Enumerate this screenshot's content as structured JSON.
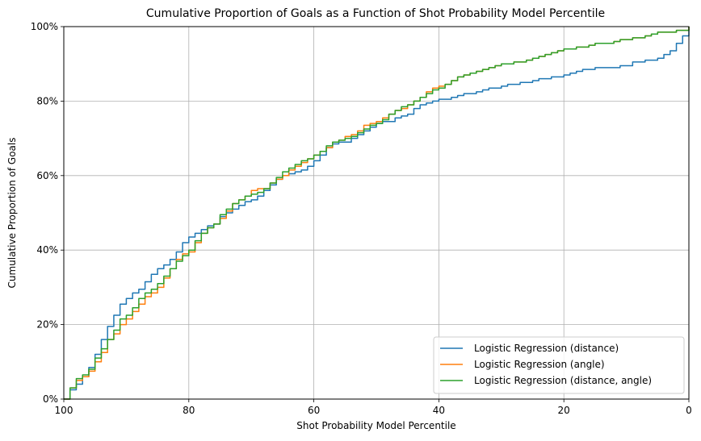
{
  "chart_data": {
    "type": "line",
    "title": "Cumulative Proportion of Goals as a Function of Shot Probability Model Percentile",
    "xlabel": "Shot Probability Model Percentile",
    "ylabel": "Cumulative Proportion of Goals",
    "xlim": [
      100,
      0
    ],
    "ylim": [
      0,
      1
    ],
    "x_reversed": true,
    "grid": true,
    "legend_position": "lower-right",
    "x_ticks": [
      100,
      80,
      60,
      40,
      20,
      0
    ],
    "x_tick_labels": [
      "100",
      "80",
      "60",
      "40",
      "20",
      "0"
    ],
    "y_ticks": [
      0,
      0.2,
      0.4,
      0.6,
      0.8,
      1.0
    ],
    "y_tick_labels": [
      "0%",
      "20%",
      "40%",
      "60%",
      "80%",
      "100%"
    ],
    "series": [
      {
        "name": "Logistic Regression (distance)",
        "color": "#1f77b4",
        "points": [
          [
            100,
            0.0
          ],
          [
            99,
            0.025
          ],
          [
            98,
            0.04
          ],
          [
            97,
            0.06
          ],
          [
            96,
            0.085
          ],
          [
            95,
            0.12
          ],
          [
            94,
            0.16
          ],
          [
            93,
            0.195
          ],
          [
            92,
            0.225
          ],
          [
            91,
            0.255
          ],
          [
            90,
            0.27
          ],
          [
            89,
            0.285
          ],
          [
            88,
            0.295
          ],
          [
            87,
            0.315
          ],
          [
            86,
            0.335
          ],
          [
            85,
            0.35
          ],
          [
            84,
            0.36
          ],
          [
            83,
            0.375
          ],
          [
            82,
            0.395
          ],
          [
            81,
            0.42
          ],
          [
            80,
            0.435
          ],
          [
            79,
            0.445
          ],
          [
            78,
            0.455
          ],
          [
            77,
            0.465
          ],
          [
            76,
            0.47
          ],
          [
            75,
            0.49
          ],
          [
            74,
            0.5
          ],
          [
            73,
            0.51
          ],
          [
            72,
            0.52
          ],
          [
            71,
            0.53
          ],
          [
            70,
            0.535
          ],
          [
            69,
            0.545
          ],
          [
            68,
            0.56
          ],
          [
            67,
            0.575
          ],
          [
            66,
            0.59
          ],
          [
            65,
            0.6
          ],
          [
            64,
            0.605
          ],
          [
            63,
            0.61
          ],
          [
            62,
            0.615
          ],
          [
            61,
            0.625
          ],
          [
            60,
            0.64
          ],
          [
            59,
            0.655
          ],
          [
            58,
            0.675
          ],
          [
            57,
            0.685
          ],
          [
            56,
            0.69
          ],
          [
            55,
            0.69
          ],
          [
            54,
            0.7
          ],
          [
            53,
            0.71
          ],
          [
            52,
            0.72
          ],
          [
            51,
            0.73
          ],
          [
            50,
            0.74
          ],
          [
            49,
            0.745
          ],
          [
            48,
            0.745
          ],
          [
            47,
            0.755
          ],
          [
            46,
            0.76
          ],
          [
            45,
            0.765
          ],
          [
            44,
            0.78
          ],
          [
            43,
            0.79
          ],
          [
            42,
            0.795
          ],
          [
            41,
            0.8
          ],
          [
            40,
            0.805
          ],
          [
            39,
            0.805
          ],
          [
            38,
            0.81
          ],
          [
            37,
            0.815
          ],
          [
            36,
            0.82
          ],
          [
            35,
            0.82
          ],
          [
            34,
            0.825
          ],
          [
            33,
            0.83
          ],
          [
            32,
            0.835
          ],
          [
            31,
            0.835
          ],
          [
            30,
            0.84
          ],
          [
            29,
            0.845
          ],
          [
            28,
            0.845
          ],
          [
            27,
            0.85
          ],
          [
            26,
            0.85
          ],
          [
            25,
            0.855
          ],
          [
            24,
            0.86
          ],
          [
            23,
            0.86
          ],
          [
            22,
            0.865
          ],
          [
            21,
            0.865
          ],
          [
            20,
            0.87
          ],
          [
            19,
            0.875
          ],
          [
            18,
            0.88
          ],
          [
            17,
            0.885
          ],
          [
            16,
            0.885
          ],
          [
            15,
            0.89
          ],
          [
            14,
            0.89
          ],
          [
            13,
            0.89
          ],
          [
            12,
            0.89
          ],
          [
            11,
            0.895
          ],
          [
            10,
            0.895
          ],
          [
            9,
            0.905
          ],
          [
            8,
            0.905
          ],
          [
            7,
            0.91
          ],
          [
            6,
            0.91
          ],
          [
            5,
            0.915
          ],
          [
            4,
            0.925
          ],
          [
            3,
            0.935
          ],
          [
            2,
            0.955
          ],
          [
            1,
            0.975
          ],
          [
            0,
            1.0
          ]
        ]
      },
      {
        "name": "Logistic Regression (angle)",
        "color": "#ff7f0e",
        "points": [
          [
            100,
            0.0
          ],
          [
            99,
            0.03
          ],
          [
            98,
            0.05
          ],
          [
            97,
            0.06
          ],
          [
            96,
            0.075
          ],
          [
            95,
            0.1
          ],
          [
            94,
            0.125
          ],
          [
            93,
            0.16
          ],
          [
            92,
            0.175
          ],
          [
            91,
            0.2
          ],
          [
            90,
            0.215
          ],
          [
            89,
            0.235
          ],
          [
            88,
            0.255
          ],
          [
            87,
            0.275
          ],
          [
            86,
            0.285
          ],
          [
            85,
            0.3
          ],
          [
            84,
            0.325
          ],
          [
            83,
            0.35
          ],
          [
            82,
            0.375
          ],
          [
            81,
            0.39
          ],
          [
            80,
            0.395
          ],
          [
            79,
            0.42
          ],
          [
            78,
            0.445
          ],
          [
            77,
            0.46
          ],
          [
            76,
            0.47
          ],
          [
            75,
            0.485
          ],
          [
            74,
            0.505
          ],
          [
            73,
            0.525
          ],
          [
            72,
            0.535
          ],
          [
            71,
            0.545
          ],
          [
            70,
            0.56
          ],
          [
            69,
            0.565
          ],
          [
            68,
            0.565
          ],
          [
            67,
            0.58
          ],
          [
            66,
            0.59
          ],
          [
            65,
            0.6
          ],
          [
            64,
            0.615
          ],
          [
            63,
            0.625
          ],
          [
            62,
            0.635
          ],
          [
            61,
            0.645
          ],
          [
            60,
            0.655
          ],
          [
            59,
            0.665
          ],
          [
            58,
            0.675
          ],
          [
            57,
            0.69
          ],
          [
            56,
            0.695
          ],
          [
            55,
            0.705
          ],
          [
            54,
            0.71
          ],
          [
            53,
            0.72
          ],
          [
            52,
            0.735
          ],
          [
            51,
            0.74
          ],
          [
            50,
            0.745
          ],
          [
            49,
            0.755
          ],
          [
            48,
            0.765
          ],
          [
            47,
            0.775
          ],
          [
            46,
            0.78
          ],
          [
            45,
            0.79
          ],
          [
            44,
            0.8
          ],
          [
            43,
            0.81
          ],
          [
            42,
            0.825
          ],
          [
            41,
            0.835
          ],
          [
            40,
            0.84
          ],
          [
            39,
            0.845
          ],
          [
            38,
            0.855
          ],
          [
            37,
            0.865
          ],
          [
            36,
            0.87
          ],
          [
            35,
            0.875
          ],
          [
            34,
            0.88
          ],
          [
            33,
            0.885
          ],
          [
            32,
            0.89
          ],
          [
            31,
            0.895
          ],
          [
            30,
            0.9
          ],
          [
            29,
            0.9
          ],
          [
            28,
            0.905
          ],
          [
            27,
            0.905
          ],
          [
            26,
            0.91
          ],
          [
            25,
            0.915
          ],
          [
            24,
            0.92
          ],
          [
            23,
            0.925
          ],
          [
            22,
            0.93
          ],
          [
            21,
            0.935
          ],
          [
            20,
            0.94
          ],
          [
            19,
            0.94
          ],
          [
            18,
            0.945
          ],
          [
            17,
            0.945
          ],
          [
            16,
            0.95
          ],
          [
            15,
            0.955
          ],
          [
            14,
            0.955
          ],
          [
            13,
            0.955
          ],
          [
            12,
            0.96
          ],
          [
            11,
            0.965
          ],
          [
            10,
            0.965
          ],
          [
            9,
            0.97
          ],
          [
            8,
            0.97
          ],
          [
            7,
            0.975
          ],
          [
            6,
            0.98
          ],
          [
            5,
            0.985
          ],
          [
            4,
            0.985
          ],
          [
            3,
            0.985
          ],
          [
            2,
            0.99
          ],
          [
            1,
            0.99
          ],
          [
            0,
            1.0
          ]
        ]
      },
      {
        "name": "Logistic Regression (distance, angle)",
        "color": "#2ca02c",
        "points": [
          [
            100,
            0.0
          ],
          [
            99,
            0.03
          ],
          [
            98,
            0.055
          ],
          [
            97,
            0.065
          ],
          [
            96,
            0.08
          ],
          [
            95,
            0.11
          ],
          [
            94,
            0.135
          ],
          [
            93,
            0.16
          ],
          [
            92,
            0.185
          ],
          [
            91,
            0.215
          ],
          [
            90,
            0.225
          ],
          [
            89,
            0.245
          ],
          [
            88,
            0.27
          ],
          [
            87,
            0.285
          ],
          [
            86,
            0.295
          ],
          [
            85,
            0.31
          ],
          [
            84,
            0.33
          ],
          [
            83,
            0.35
          ],
          [
            82,
            0.37
          ],
          [
            81,
            0.385
          ],
          [
            80,
            0.4
          ],
          [
            79,
            0.425
          ],
          [
            78,
            0.445
          ],
          [
            77,
            0.46
          ],
          [
            76,
            0.47
          ],
          [
            75,
            0.495
          ],
          [
            74,
            0.51
          ],
          [
            73,
            0.525
          ],
          [
            72,
            0.535
          ],
          [
            71,
            0.545
          ],
          [
            70,
            0.55
          ],
          [
            69,
            0.555
          ],
          [
            68,
            0.565
          ],
          [
            67,
            0.58
          ],
          [
            66,
            0.595
          ],
          [
            65,
            0.61
          ],
          [
            64,
            0.62
          ],
          [
            63,
            0.63
          ],
          [
            62,
            0.64
          ],
          [
            61,
            0.645
          ],
          [
            60,
            0.655
          ],
          [
            59,
            0.665
          ],
          [
            58,
            0.68
          ],
          [
            57,
            0.69
          ],
          [
            56,
            0.695
          ],
          [
            55,
            0.7
          ],
          [
            54,
            0.705
          ],
          [
            53,
            0.715
          ],
          [
            52,
            0.725
          ],
          [
            51,
            0.735
          ],
          [
            50,
            0.74
          ],
          [
            49,
            0.75
          ],
          [
            48,
            0.765
          ],
          [
            47,
            0.775
          ],
          [
            46,
            0.785
          ],
          [
            45,
            0.79
          ],
          [
            44,
            0.8
          ],
          [
            43,
            0.81
          ],
          [
            42,
            0.82
          ],
          [
            41,
            0.83
          ],
          [
            40,
            0.835
          ],
          [
            39,
            0.845
          ],
          [
            38,
            0.855
          ],
          [
            37,
            0.865
          ],
          [
            36,
            0.87
          ],
          [
            35,
            0.875
          ],
          [
            34,
            0.88
          ],
          [
            33,
            0.885
          ],
          [
            32,
            0.89
          ],
          [
            31,
            0.895
          ],
          [
            30,
            0.9
          ],
          [
            29,
            0.9
          ],
          [
            28,
            0.905
          ],
          [
            27,
            0.905
          ],
          [
            26,
            0.91
          ],
          [
            25,
            0.915
          ],
          [
            24,
            0.92
          ],
          [
            23,
            0.925
          ],
          [
            22,
            0.93
          ],
          [
            21,
            0.935
          ],
          [
            20,
            0.94
          ],
          [
            19,
            0.94
          ],
          [
            18,
            0.945
          ],
          [
            17,
            0.945
          ],
          [
            16,
            0.95
          ],
          [
            15,
            0.955
          ],
          [
            14,
            0.955
          ],
          [
            13,
            0.955
          ],
          [
            12,
            0.96
          ],
          [
            11,
            0.965
          ],
          [
            10,
            0.965
          ],
          [
            9,
            0.97
          ],
          [
            8,
            0.97
          ],
          [
            7,
            0.975
          ],
          [
            6,
            0.98
          ],
          [
            5,
            0.985
          ],
          [
            4,
            0.985
          ],
          [
            3,
            0.985
          ],
          [
            2,
            0.99
          ],
          [
            1,
            0.99
          ],
          [
            0,
            1.0
          ]
        ]
      }
    ]
  }
}
